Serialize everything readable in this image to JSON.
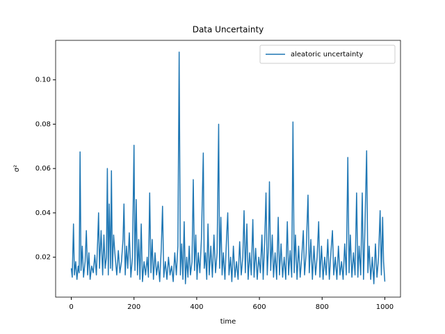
{
  "chart_data": {
    "type": "line",
    "title": "Data Uncertainty",
    "x_label": "time",
    "y_label": "σ²",
    "legend_position": "upper right",
    "grid": false,
    "xlim": [
      -50,
      1050
    ],
    "ylim": [
      0.002,
      0.1178
    ],
    "xticks": [
      0,
      200,
      400,
      600,
      800,
      1000
    ],
    "yticks": [
      {
        "value": 0.02,
        "label": "0.02"
      },
      {
        "value": 0.04,
        "label": "0.04"
      },
      {
        "value": 0.06,
        "label": "0.06"
      },
      {
        "value": 0.08,
        "label": "0.08"
      },
      {
        "value": 0.1,
        "label": "0.10"
      }
    ],
    "x": [
      0,
      3,
      7,
      10,
      14,
      18,
      22,
      25,
      28,
      31,
      35,
      39,
      44,
      48,
      52,
      56,
      60,
      65,
      70,
      75,
      80,
      84,
      87,
      90,
      95,
      100,
      104,
      108,
      112,
      115,
      118,
      121,
      125,
      128,
      131,
      135,
      140,
      145,
      150,
      155,
      160,
      165,
      168,
      172,
      176,
      180,
      185,
      190,
      195,
      200,
      203,
      207,
      211,
      215,
      219,
      223,
      227,
      232,
      237,
      242,
      246,
      250,
      254,
      258,
      262,
      267,
      272,
      277,
      282,
      287,
      291,
      295,
      300,
      305,
      310,
      315,
      320,
      325,
      330,
      335,
      340,
      344,
      348,
      352,
      356,
      360,
      364,
      368,
      372,
      376,
      380,
      385,
      389,
      393,
      397,
      401,
      405,
      410,
      415,
      421,
      424,
      428,
      432,
      436,
      440,
      445,
      450,
      455,
      460,
      465,
      470,
      473,
      477,
      481,
      485,
      490,
      495,
      499,
      503,
      508,
      512,
      517,
      522,
      527,
      532,
      537,
      542,
      547,
      551,
      555,
      560,
      564,
      569,
      574,
      579,
      583,
      588,
      593,
      598,
      603,
      608,
      612,
      617,
      621,
      625,
      629,
      632,
      636,
      641,
      645,
      650,
      655,
      660,
      664,
      669,
      674,
      679,
      684,
      689,
      693,
      698,
      703,
      707,
      711,
      715,
      720,
      725,
      730,
      735,
      740,
      744,
      749,
      755,
      759,
      764,
      769,
      774,
      779,
      784,
      789,
      793,
      798,
      803,
      808,
      813,
      818,
      823,
      828,
      833,
      837,
      842,
      847,
      852,
      857,
      862,
      867,
      872,
      877,
      882,
      886,
      890,
      895,
      900,
      905,
      910,
      914,
      918,
      923,
      928,
      932,
      936,
      942,
      946,
      950,
      955,
      960,
      965,
      970,
      975,
      980,
      985,
      989,
      993,
      996,
      1000
    ],
    "series": [
      {
        "name": "aleatoric uncertainty",
        "color": "#1f77b4",
        "values": [
          0.015,
          0.011,
          0.035,
          0.012,
          0.018,
          0.01,
          0.016,
          0.013,
          0.0675,
          0.014,
          0.025,
          0.011,
          0.018,
          0.032,
          0.012,
          0.022,
          0.01,
          0.016,
          0.013,
          0.021,
          0.012,
          0.027,
          0.04,
          0.015,
          0.032,
          0.012,
          0.03,
          0.015,
          0.02,
          0.06,
          0.012,
          0.044,
          0.015,
          0.059,
          0.014,
          0.03,
          0.02,
          0.012,
          0.023,
          0.013,
          0.018,
          0.028,
          0.044,
          0.012,
          0.025,
          0.015,
          0.031,
          0.011,
          0.02,
          0.0705,
          0.014,
          0.046,
          0.012,
          0.028,
          0.01,
          0.035,
          0.009,
          0.018,
          0.012,
          0.02,
          0.011,
          0.049,
          0.013,
          0.028,
          0.01,
          0.022,
          0.012,
          0.018,
          0.009,
          0.024,
          0.043,
          0.011,
          0.018,
          0.01,
          0.02,
          0.012,
          0.016,
          0.009,
          0.022,
          0.012,
          0.025,
          0.1125,
          0.012,
          0.026,
          0.01,
          0.036,
          0.008,
          0.02,
          0.011,
          0.025,
          0.012,
          0.018,
          0.055,
          0.014,
          0.03,
          0.01,
          0.022,
          0.013,
          0.028,
          0.067,
          0.015,
          0.022,
          0.01,
          0.035,
          0.012,
          0.025,
          0.011,
          0.03,
          0.013,
          0.022,
          0.08,
          0.015,
          0.038,
          0.012,
          0.022,
          0.01,
          0.028,
          0.04,
          0.012,
          0.02,
          0.009,
          0.025,
          0.011,
          0.018,
          0.01,
          0.027,
          0.012,
          0.02,
          0.041,
          0.013,
          0.035,
          0.01,
          0.022,
          0.012,
          0.037,
          0.011,
          0.024,
          0.01,
          0.02,
          0.013,
          0.03,
          0.01,
          0.028,
          0.049,
          0.012,
          0.025,
          0.054,
          0.014,
          0.03,
          0.011,
          0.022,
          0.01,
          0.038,
          0.012,
          0.026,
          0.011,
          0.02,
          0.01,
          0.036,
          0.012,
          0.023,
          0.011,
          0.081,
          0.013,
          0.03,
          0.01,
          0.025,
          0.011,
          0.02,
          0.032,
          0.012,
          0.022,
          0.048,
          0.013,
          0.028,
          0.01,
          0.025,
          0.012,
          0.02,
          0.036,
          0.011,
          0.025,
          0.01,
          0.02,
          0.012,
          0.028,
          0.01,
          0.022,
          0.032,
          0.012,
          0.02,
          0.01,
          0.025,
          0.012,
          0.018,
          0.01,
          0.026,
          0.012,
          0.065,
          0.013,
          0.03,
          0.011,
          0.022,
          0.012,
          0.049,
          0.011,
          0.025,
          0.012,
          0.049,
          0.01,
          0.03,
          0.068,
          0.013,
          0.025,
          0.01,
          0.02,
          0.008,
          0.026,
          0.011,
          0.02,
          0.041,
          0.012,
          0.038,
          0.018,
          0.009
        ]
      }
    ]
  }
}
